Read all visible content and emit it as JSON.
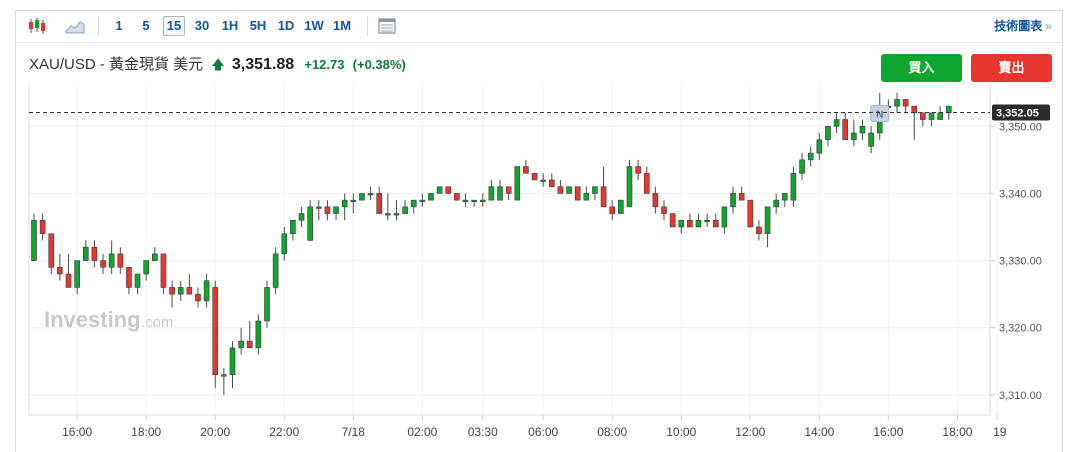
{
  "toolbar": {
    "chart_type_icons": [
      "candlestick-icon",
      "area-chart-icon"
    ],
    "intervals": [
      "1",
      "5",
      "15",
      "30",
      "1H",
      "5H",
      "1D",
      "1W",
      "1M"
    ],
    "active_interval": "15",
    "settings_icon": "table-icon",
    "tech_chart_label": "技術圖表",
    "tech_chart_arrow": "»"
  },
  "header": {
    "instrument": "XAU/USD - 黃金現貨 美元",
    "direction_icon": "up-arrow-icon",
    "price": "3,351.88",
    "change": "+12.73",
    "change_pct": "(+0.38%)"
  },
  "buttons": {
    "buy": "買入",
    "sell": "賣出"
  },
  "colors": {
    "up": "#0ea62c",
    "down": "#e9362c",
    "link": "#1256a0",
    "price_tag": "#2b2b2b"
  },
  "watermark": {
    "brand": "Investing",
    "suffix": ".com"
  },
  "chart_data": {
    "type": "candlestick",
    "x_tick_labels": [
      "16:00",
      "18:00",
      "20:00",
      "22:00",
      "7/18",
      "02:00",
      "03:30",
      "06:00",
      "08:00",
      "10:00",
      "12:00",
      "14:00",
      "16:00",
      "18:00",
      "19"
    ],
    "y_ticks": [
      3310,
      3320,
      3330,
      3340,
      3350
    ],
    "y_tick_labels": [
      "3,310.00",
      "3,320.00",
      "3,330.00",
      "3,340.00",
      "3,350.00"
    ],
    "ylim": [
      3307,
      3356
    ],
    "last_price": 3352.05,
    "last_price_label": "3,352.05",
    "event_marker": "N",
    "candles": [
      {
        "o": 3330,
        "h": 3337,
        "l": 3330,
        "c": 3336
      },
      {
        "o": 3336,
        "h": 3337,
        "l": 3333,
        "c": 3334
      },
      {
        "o": 3334,
        "h": 3334,
        "l": 3328,
        "c": 3329
      },
      {
        "o": 3329,
        "h": 3331,
        "l": 3327,
        "c": 3328
      },
      {
        "o": 3328,
        "h": 3331,
        "l": 3326,
        "c": 3326
      },
      {
        "o": 3326,
        "h": 3330,
        "l": 3325,
        "c": 3330
      },
      {
        "o": 3330,
        "h": 3333,
        "l": 3330,
        "c": 3332
      },
      {
        "o": 3332,
        "h": 3333,
        "l": 3329,
        "c": 3330
      },
      {
        "o": 3330,
        "h": 3331,
        "l": 3328,
        "c": 3329
      },
      {
        "o": 3329,
        "h": 3333,
        "l": 3328,
        "c": 3331
      },
      {
        "o": 3331,
        "h": 3332,
        "l": 3328,
        "c": 3329
      },
      {
        "o": 3329,
        "h": 3329,
        "l": 3325,
        "c": 3326
      },
      {
        "o": 3326,
        "h": 3328,
        "l": 3325,
        "c": 3328
      },
      {
        "o": 3328,
        "h": 3330,
        "l": 3327,
        "c": 3330
      },
      {
        "o": 3330,
        "h": 3332,
        "l": 3330,
        "c": 3331
      },
      {
        "o": 3331,
        "h": 3331,
        "l": 3325,
        "c": 3326
      },
      {
        "o": 3326,
        "h": 3327,
        "l": 3323,
        "c": 3325
      },
      {
        "o": 3325,
        "h": 3327,
        "l": 3324,
        "c": 3326
      },
      {
        "o": 3326,
        "h": 3328,
        "l": 3325,
        "c": 3325
      },
      {
        "o": 3325,
        "h": 3326,
        "l": 3323,
        "c": 3324
      },
      {
        "o": 3324,
        "h": 3328,
        "l": 3323,
        "c": 3327
      },
      {
        "o": 3326,
        "h": 3327,
        "l": 3311,
        "c": 3313
      },
      {
        "o": 3313,
        "h": 3314,
        "l": 3310,
        "c": 3313
      },
      {
        "o": 3313,
        "h": 3318,
        "l": 3311,
        "c": 3317
      },
      {
        "o": 3317,
        "h": 3320,
        "l": 3316,
        "c": 3318
      },
      {
        "o": 3318,
        "h": 3321,
        "l": 3317,
        "c": 3317
      },
      {
        "o": 3317,
        "h": 3322,
        "l": 3316,
        "c": 3321
      },
      {
        "o": 3321,
        "h": 3327,
        "l": 3320,
        "c": 3326
      },
      {
        "o": 3326,
        "h": 3332,
        "l": 3325,
        "c": 3331
      },
      {
        "o": 3331,
        "h": 3335,
        "l": 3330,
        "c": 3334
      },
      {
        "o": 3334,
        "h": 3336,
        "l": 3333,
        "c": 3336
      },
      {
        "o": 3336,
        "h": 3338,
        "l": 3335,
        "c": 3337
      },
      {
        "o": 3333,
        "h": 3339,
        "l": 3333,
        "c": 3338
      },
      {
        "o": 3338,
        "h": 3339,
        "l": 3336,
        "c": 3338
      },
      {
        "o": 3338,
        "h": 3339,
        "l": 3336,
        "c": 3337
      },
      {
        "o": 3337,
        "h": 3338,
        "l": 3336,
        "c": 3338
      },
      {
        "o": 3338,
        "h": 3340,
        "l": 3336,
        "c": 3339
      },
      {
        "o": 3339,
        "h": 3340,
        "l": 3337,
        "c": 3339
      },
      {
        "o": 3339,
        "h": 3340,
        "l": 3339,
        "c": 3340
      },
      {
        "o": 3340,
        "h": 3341,
        "l": 3339,
        "c": 3340
      },
      {
        "o": 3340,
        "h": 3341,
        "l": 3337,
        "c": 3337
      },
      {
        "o": 3337,
        "h": 3340,
        "l": 3336,
        "c": 3337
      },
      {
        "o": 3337,
        "h": 3339,
        "l": 3336,
        "c": 3337
      },
      {
        "o": 3337,
        "h": 3339,
        "l": 3337,
        "c": 3338
      },
      {
        "o": 3338,
        "h": 3339,
        "l": 3337,
        "c": 3339
      },
      {
        "o": 3339,
        "h": 3340,
        "l": 3338,
        "c": 3339
      },
      {
        "o": 3339,
        "h": 3340,
        "l": 3339,
        "c": 3340
      },
      {
        "o": 3340,
        "h": 3341,
        "l": 3340,
        "c": 3341
      },
      {
        "o": 3341,
        "h": 3341,
        "l": 3340,
        "c": 3340
      },
      {
        "o": 3340,
        "h": 3340,
        "l": 3339,
        "c": 3339
      },
      {
        "o": 3339,
        "h": 3340,
        "l": 3338,
        "c": 3339
      },
      {
        "o": 3339,
        "h": 3339,
        "l": 3338,
        "c": 3339
      },
      {
        "o": 3339,
        "h": 3340,
        "l": 3338,
        "c": 3339
      },
      {
        "o": 3339,
        "h": 3342,
        "l": 3339,
        "c": 3341
      },
      {
        "o": 3339,
        "h": 3342,
        "l": 3339,
        "c": 3341
      },
      {
        "o": 3341,
        "h": 3341,
        "l": 3339,
        "c": 3340
      },
      {
        "o": 3339,
        "h": 3344,
        "l": 3339,
        "c": 3344
      },
      {
        "o": 3344,
        "h": 3345,
        "l": 3343,
        "c": 3343
      },
      {
        "o": 3343,
        "h": 3343,
        "l": 3342,
        "c": 3342
      },
      {
        "o": 3342,
        "h": 3343,
        "l": 3341,
        "c": 3342
      },
      {
        "o": 3342,
        "h": 3343,
        "l": 3341,
        "c": 3341
      },
      {
        "o": 3341,
        "h": 3342,
        "l": 3340,
        "c": 3340
      },
      {
        "o": 3340,
        "h": 3341,
        "l": 3340,
        "c": 3341
      },
      {
        "o": 3341,
        "h": 3341,
        "l": 3339,
        "c": 3339
      },
      {
        "o": 3339,
        "h": 3341,
        "l": 3339,
        "c": 3340
      },
      {
        "o": 3340,
        "h": 3341,
        "l": 3339,
        "c": 3341
      },
      {
        "o": 3341,
        "h": 3344,
        "l": 3338,
        "c": 3338
      },
      {
        "o": 3338,
        "h": 3339,
        "l": 3336,
        "c": 3337
      },
      {
        "o": 3337,
        "h": 3339,
        "l": 3337,
        "c": 3339
      },
      {
        "o": 3338,
        "h": 3345,
        "l": 3338,
        "c": 3344
      },
      {
        "o": 3344,
        "h": 3345,
        "l": 3342,
        "c": 3343
      },
      {
        "o": 3343,
        "h": 3344,
        "l": 3340,
        "c": 3340
      },
      {
        "o": 3340,
        "h": 3341,
        "l": 3337,
        "c": 3338
      },
      {
        "o": 3338,
        "h": 3339,
        "l": 3336,
        "c": 3337
      },
      {
        "o": 3337,
        "h": 3337,
        "l": 3335,
        "c": 3335
      },
      {
        "o": 3335,
        "h": 3336,
        "l": 3334,
        "c": 3336
      },
      {
        "o": 3336,
        "h": 3337,
        "l": 3335,
        "c": 3335
      },
      {
        "o": 3335,
        "h": 3337,
        "l": 3335,
        "c": 3336
      },
      {
        "o": 3336,
        "h": 3337,
        "l": 3335,
        "c": 3336
      },
      {
        "o": 3336,
        "h": 3337,
        "l": 3335,
        "c": 3335
      },
      {
        "o": 3335,
        "h": 3338,
        "l": 3334,
        "c": 3338
      },
      {
        "o": 3338,
        "h": 3341,
        "l": 3337,
        "c": 3340
      },
      {
        "o": 3340,
        "h": 3341,
        "l": 3339,
        "c": 3339
      },
      {
        "o": 3339,
        "h": 3339,
        "l": 3335,
        "c": 3335
      },
      {
        "o": 3335,
        "h": 3336,
        "l": 3333,
        "c": 3334
      },
      {
        "o": 3334,
        "h": 3338,
        "l": 3332,
        "c": 3338
      },
      {
        "o": 3338,
        "h": 3340,
        "l": 3337,
        "c": 3339
      },
      {
        "o": 3339,
        "h": 3340,
        "l": 3338,
        "c": 3340
      },
      {
        "o": 3339,
        "h": 3344,
        "l": 3338,
        "c": 3343
      },
      {
        "o": 3343,
        "h": 3346,
        "l": 3342,
        "c": 3345
      },
      {
        "o": 3345,
        "h": 3347,
        "l": 3344,
        "c": 3346
      },
      {
        "o": 3346,
        "h": 3349,
        "l": 3345,
        "c": 3348
      },
      {
        "o": 3348,
        "h": 3350,
        "l": 3347,
        "c": 3350
      },
      {
        "o": 3350,
        "h": 3352,
        "l": 3349,
        "c": 3351
      },
      {
        "o": 3351,
        "h": 3352,
        "l": 3348,
        "c": 3348
      },
      {
        "o": 3348,
        "h": 3351,
        "l": 3347,
        "c": 3349
      },
      {
        "o": 3349,
        "h": 3351,
        "l": 3348,
        "c": 3350
      },
      {
        "o": 3347,
        "h": 3350,
        "l": 3346,
        "c": 3349
      },
      {
        "o": 3349,
        "h": 3355,
        "l": 3348,
        "c": 3353
      },
      {
        "o": 3353,
        "h": 3354,
        "l": 3352,
        "c": 3353
      },
      {
        "o": 3353,
        "h": 3355,
        "l": 3352,
        "c": 3354
      },
      {
        "o": 3354,
        "h": 3354,
        "l": 3352,
        "c": 3353
      },
      {
        "o": 3353,
        "h": 3353,
        "l": 3348,
        "c": 3352
      },
      {
        "o": 3352,
        "h": 3352,
        "l": 3350,
        "c": 3351
      },
      {
        "o": 3351,
        "h": 3352,
        "l": 3350,
        "c": 3352
      },
      {
        "o": 3351,
        "h": 3353,
        "l": 3351,
        "c": 3352
      },
      {
        "o": 3352,
        "h": 3353,
        "l": 3351,
        "c": 3353
      }
    ]
  }
}
